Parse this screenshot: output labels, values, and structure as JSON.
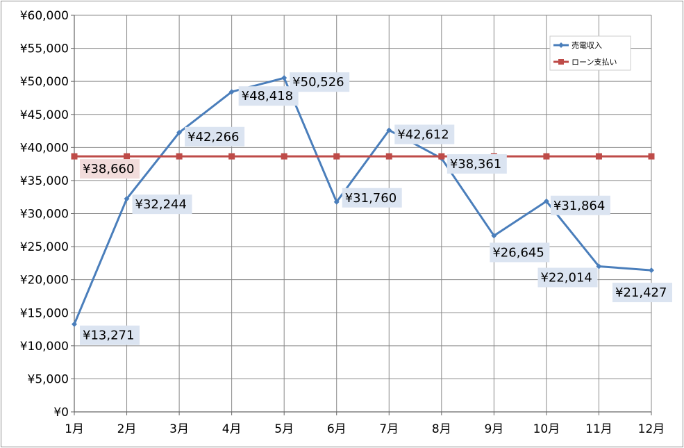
{
  "chart_data": {
    "type": "line",
    "categories": [
      "1月",
      "2月",
      "3月",
      "4月",
      "5月",
      "6月",
      "7月",
      "8月",
      "9月",
      "10月",
      "11月",
      "12月"
    ],
    "series": [
      {
        "name": "売電収入",
        "color": "#4a7ebb",
        "marker": "diamond",
        "values": [
          13271,
          32244,
          42266,
          48418,
          50526,
          31760,
          42612,
          38361,
          26645,
          31864,
          22014,
          21427
        ],
        "labels": [
          "¥13,271",
          "¥32,244",
          "¥42,266",
          "¥48,418",
          "¥50,526",
          "¥31,760",
          "¥42,612",
          "¥38,361",
          "¥26,645",
          "¥31,864",
          "¥22,014",
          "¥21,427"
        ]
      },
      {
        "name": "ローン支払い",
        "color": "#be4b48",
        "marker": "square",
        "values": [
          38660,
          38660,
          38660,
          38660,
          38660,
          38660,
          38660,
          38660,
          38660,
          38660,
          38660,
          38660
        ],
        "labels": [
          "¥38,660"
        ]
      }
    ],
    "y_ticks": [
      "¥0",
      "¥5,000",
      "¥10,000",
      "¥15,000",
      "¥20,000",
      "¥25,000",
      "¥30,000",
      "¥35,000",
      "¥40,000",
      "¥45,000",
      "¥50,000",
      "¥55,000",
      "¥60,000"
    ],
    "ylim": [
      0,
      60000
    ],
    "y_step": 5000,
    "grid": true,
    "legend_position": "top-right",
    "label_fill": "#dbe4f1",
    "red_label_fill": "#f2dcdb"
  }
}
